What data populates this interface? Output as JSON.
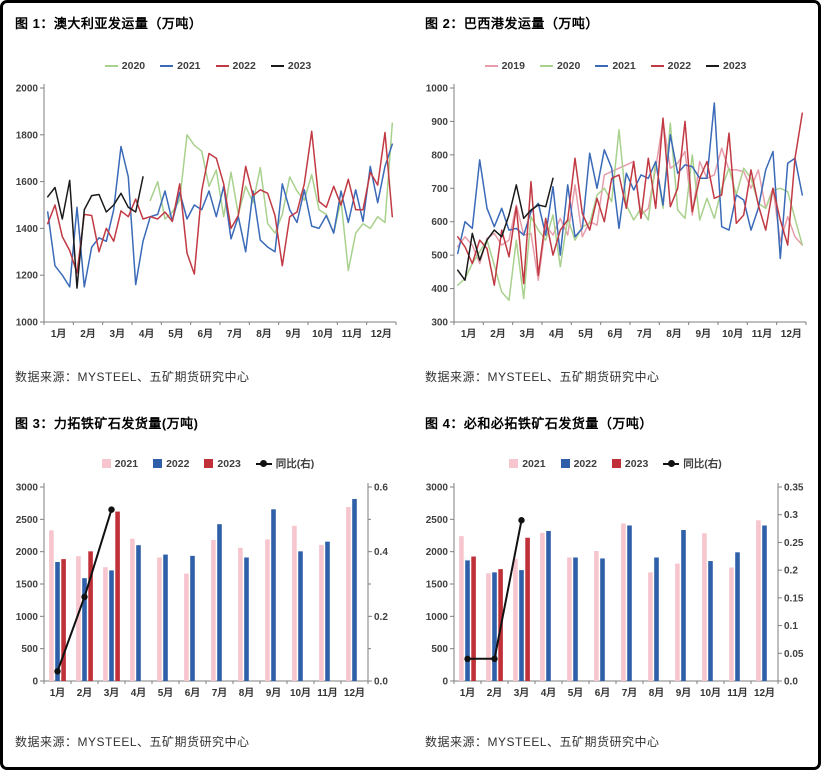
{
  "page": {
    "background": "#ffffff",
    "border_color": "#000000",
    "axis_color": "#7f7f7f",
    "tick_label_color": "#404040"
  },
  "charts": [
    {
      "id": "australia-shipments",
      "title": "图 1：澳大利亚发运量（万吨）",
      "source": "数据来源：MYSTEEL、五矿期货研究中心",
      "type": "line",
      "x_labels": [
        "1月",
        "2月",
        "3月",
        "4月",
        "5月",
        "6月",
        "7月",
        "8月",
        "9月",
        "10月",
        "11月",
        "12月"
      ],
      "y_left": {
        "min": 1000,
        "max": 2000,
        "label_values": [
          1000,
          1200,
          1400,
          1600,
          1800,
          2000
        ],
        "labels": [
          "1000",
          "1200",
          "1400",
          "1600",
          "1800",
          "2000"
        ]
      },
      "series": [
        {
          "name": "2020",
          "color": "#a9d18e",
          "render": "line",
          "axis": "left",
          "values": [
            null,
            null,
            null,
            null,
            null,
            null,
            null,
            null,
            null,
            null,
            null,
            null,
            null,
            null,
            1520,
            1600,
            1440,
            1470,
            1520,
            1800,
            1755,
            1730,
            1580,
            1650,
            1450,
            1640,
            1460,
            1580,
            1510,
            1660,
            1420,
            1380,
            1460,
            1620,
            1560,
            1520,
            1630,
            1480,
            1460,
            1380,
            1520,
            1220,
            1380,
            1420,
            1400,
            1450,
            1425,
            1850
          ]
        },
        {
          "name": "2021",
          "color": "#3a6ab8",
          "render": "line",
          "axis": "left",
          "values": [
            1470,
            1240,
            1200,
            1150,
            1490,
            1150,
            1320,
            1360,
            1345,
            1480,
            1750,
            1620,
            1160,
            1345,
            1450,
            1460,
            1560,
            1430,
            1555,
            1440,
            1500,
            1480,
            1560,
            1450,
            1580,
            1355,
            1450,
            1300,
            1560,
            1350,
            1320,
            1300,
            1590,
            1480,
            1425,
            1565,
            1410,
            1400,
            1455,
            1380,
            1560,
            1425,
            1565,
            1430,
            1665,
            1510,
            1665,
            1760
          ]
        },
        {
          "name": "2022",
          "color": "#c13a43",
          "render": "line",
          "axis": "left",
          "values": [
            1420,
            1500,
            1365,
            1305,
            1210,
            1460,
            1455,
            1300,
            1400,
            1345,
            1475,
            1450,
            1525,
            1440,
            1450,
            1440,
            1470,
            1430,
            1590,
            1295,
            1205,
            1560,
            1720,
            1700,
            1590,
            1400,
            1455,
            1665,
            1540,
            1565,
            1550,
            1455,
            1240,
            1450,
            1470,
            1590,
            1815,
            1515,
            1490,
            1580,
            1500,
            1610,
            1480,
            1480,
            1640,
            1585,
            1810,
            1450
          ]
        },
        {
          "name": "2023",
          "color": "#1a1a1a",
          "render": "line",
          "axis": "left",
          "values": [
            1535,
            1575,
            1440,
            1605,
            1145,
            1480,
            1540,
            1545,
            1470,
            1500,
            1550,
            1490,
            1470,
            1620,
            null,
            null,
            null,
            null,
            null,
            null,
            null,
            null,
            null,
            null,
            null,
            null,
            null,
            null,
            null,
            null,
            null,
            null,
            null,
            null,
            null,
            null,
            null,
            null,
            null,
            null,
            null,
            null,
            null,
            null,
            null,
            null,
            null,
            null
          ]
        }
      ]
    },
    {
      "id": "brazil-shipments",
      "title": "图 2：巴西港发运量（万吨）",
      "source": "数据来源：MYSTEEL、五矿期货研究中心",
      "type": "line",
      "x_labels": [
        "1月",
        "2月",
        "3月",
        "4月",
        "5月",
        "6月",
        "7月",
        "8月",
        "9月",
        "10月",
        "11月",
        "12月"
      ],
      "y_left": {
        "min": 300,
        "max": 1000,
        "label_values": [
          300,
          400,
          500,
          600,
          700,
          800,
          900,
          1000
        ],
        "labels": [
          "300",
          "400",
          "500",
          "600",
          "700",
          "800",
          "900",
          "1000"
        ]
      },
      "series": [
        {
          "name": "2019",
          "color": "#e79daa",
          "render": "line",
          "axis": "left",
          "values": [
            525,
            555,
            530,
            475,
            550,
            565,
            530,
            545,
            650,
            560,
            565,
            425,
            590,
            560,
            610,
            560,
            710,
            555,
            600,
            590,
            740,
            750,
            760,
            770,
            780,
            620,
            640,
            760,
            900,
            760,
            775,
            810,
            620,
            780,
            730,
            740,
            820,
            755,
            755,
            750,
            700,
            755,
            640,
            700,
            540,
            615,
            555,
            530
          ]
        },
        {
          "name": "2020",
          "color": "#a9d18e",
          "render": "line",
          "axis": "left",
          "values": [
            410,
            430,
            475,
            510,
            545,
            470,
            390,
            365,
            545,
            370,
            615,
            575,
            545,
            620,
            465,
            610,
            545,
            585,
            595,
            680,
            700,
            660,
            875,
            650,
            605,
            640,
            605,
            780,
            640,
            895,
            635,
            610,
            800,
            605,
            670,
            610,
            700,
            760,
            680,
            760,
            730,
            655,
            640,
            695,
            700,
            690,
            610,
            530
          ]
        },
        {
          "name": "2021",
          "color": "#3a6ab8",
          "render": "line",
          "axis": "left",
          "values": [
            505,
            600,
            580,
            785,
            640,
            585,
            640,
            575,
            580,
            560,
            630,
            655,
            560,
            705,
            500,
            710,
            555,
            580,
            805,
            700,
            815,
            760,
            580,
            745,
            695,
            740,
            730,
            780,
            650,
            860,
            745,
            770,
            765,
            730,
            730,
            955,
            585,
            575,
            680,
            665,
            575,
            640,
            755,
            810,
            490,
            775,
            790,
            680
          ]
        },
        {
          "name": "2022",
          "color": "#c13a43",
          "render": "line",
          "axis": "left",
          "values": [
            555,
            525,
            475,
            545,
            520,
            410,
            575,
            495,
            645,
            415,
            720,
            440,
            610,
            500,
            575,
            605,
            790,
            625,
            575,
            670,
            600,
            730,
            740,
            640,
            780,
            610,
            790,
            640,
            910,
            645,
            700,
            900,
            630,
            730,
            780,
            670,
            680,
            865,
            595,
            620,
            755,
            650,
            575,
            700,
            605,
            530,
            790,
            925
          ]
        },
        {
          "name": "2023",
          "color": "#1a1a1a",
          "render": "line",
          "axis": "left",
          "values": [
            455,
            425,
            565,
            485,
            545,
            575,
            555,
            620,
            710,
            610,
            635,
            650,
            645,
            730,
            null,
            null,
            null,
            null,
            null,
            null,
            null,
            null,
            null,
            null,
            null,
            null,
            null,
            null,
            null,
            null,
            null,
            null,
            null,
            null,
            null,
            null,
            null,
            null,
            null,
            null,
            null,
            null,
            null,
            null,
            null,
            null,
            null,
            null
          ]
        }
      ]
    },
    {
      "id": "rio-tinto-shipments",
      "title": "图 3：力拓铁矿石发货量(万吨)",
      "source": "数据来源：MYSTEEL、五矿期货研究中心",
      "type": "bar",
      "x_labels": [
        "1月",
        "2月",
        "3月",
        "4月",
        "5月",
        "6月",
        "7月",
        "8月",
        "9月",
        "10月",
        "11月",
        "12月"
      ],
      "y_left": {
        "min": 0,
        "max": 3000,
        "label_values": [
          0,
          500,
          1000,
          1500,
          2000,
          2500,
          3000
        ],
        "labels": [
          "0",
          "500",
          "1000",
          "1500",
          "2000",
          "2500",
          "3000"
        ]
      },
      "y_right": {
        "min": 0,
        "max": 0.6,
        "label_values": [
          0,
          0.2,
          0.4,
          0.6
        ],
        "labels": [
          "0.0",
          "0.2",
          "0.4",
          "0.6"
        ],
        "minor_ticks": [
          0.1,
          0.3,
          0.5
        ]
      },
      "series": [
        {
          "name": "2021",
          "color": "#f6c5ce",
          "render": "bar",
          "axis": "left",
          "values": [
            2330,
            1930,
            1760,
            2200,
            1910,
            1660,
            2180,
            2060,
            2190,
            2400,
            2105,
            2690
          ]
        },
        {
          "name": "2022",
          "color": "#2e5fa8",
          "render": "bar",
          "axis": "left",
          "values": [
            1840,
            1590,
            1710,
            2100,
            1955,
            1935,
            2425,
            1910,
            2655,
            2005,
            2155,
            2815
          ]
        },
        {
          "name": "2023",
          "color": "#bf3038",
          "render": "bar",
          "axis": "left",
          "values": [
            1885,
            2005,
            2620,
            null,
            null,
            null,
            null,
            null,
            null,
            null,
            null,
            null
          ]
        },
        {
          "name": "同比(右)",
          "color": "#111111",
          "render": "line",
          "axis": "right",
          "marker": true,
          "width": 2,
          "values": [
            0.03,
            0.26,
            0.53,
            null,
            null,
            null,
            null,
            null,
            null,
            null,
            null,
            null
          ]
        }
      ]
    },
    {
      "id": "bhp-shipments",
      "title": "图 4：必和必拓铁矿石发货量（万吨）",
      "source": "数据来源：MYSTEEL、五矿期货研究中心",
      "type": "bar",
      "x_labels": [
        "1月",
        "2月",
        "3月",
        "4月",
        "5月",
        "6月",
        "7月",
        "8月",
        "9月",
        "10月",
        "11月",
        "12月"
      ],
      "y_left": {
        "min": 0,
        "max": 3000,
        "label_values": [
          0,
          500,
          1000,
          1500,
          2000,
          2500,
          3000
        ],
        "labels": [
          "0",
          "500",
          "1000",
          "1500",
          "2000",
          "2500",
          "3000"
        ]
      },
      "y_right": {
        "min": 0,
        "max": 0.35,
        "label_values": [
          0,
          0.05,
          0.1,
          0.15,
          0.2,
          0.25,
          0.3,
          0.35
        ],
        "labels": [
          "0.0",
          "0.05",
          "0.1",
          "0.15",
          "0.2",
          "0.25",
          "0.3",
          "0.35"
        ],
        "minor_ticks": []
      },
      "series": [
        {
          "name": "2021",
          "color": "#f6c5ce",
          "render": "bar",
          "axis": "left",
          "values": [
            2240,
            1665,
            1890,
            2290,
            1910,
            2010,
            2435,
            1680,
            1815,
            2285,
            1755,
            2485
          ]
        },
        {
          "name": "2022",
          "color": "#2e5fa8",
          "render": "bar",
          "axis": "left",
          "values": [
            1865,
            1680,
            1715,
            2320,
            1910,
            1895,
            2405,
            1910,
            2335,
            1855,
            1990,
            2405
          ]
        },
        {
          "name": "2023",
          "color": "#bf3038",
          "render": "bar",
          "axis": "left",
          "values": [
            1925,
            1730,
            2215,
            null,
            null,
            null,
            null,
            null,
            null,
            null,
            null,
            null
          ]
        },
        {
          "name": "同比(右)",
          "color": "#111111",
          "render": "line",
          "axis": "right",
          "marker": true,
          "width": 2,
          "values": [
            0.04,
            0.04,
            0.29,
            null,
            null,
            null,
            null,
            null,
            null,
            null,
            null,
            null
          ]
        }
      ]
    }
  ],
  "chart_data": {
    "note": "same data as charts[]; weekly resolution for line charts (4 points per month), monthly for bar charts",
    "charts": [
      {
        "type": "line",
        "title": "图 1：澳大利亚发运量（万吨）",
        "ylim": [
          1000,
          2000
        ],
        "x": "weeks of 1月-12月",
        "legend": [
          "2020",
          "2021",
          "2022",
          "2023"
        ]
      },
      {
        "type": "line",
        "title": "图 2：巴西港发运量（万吨）",
        "ylim": [
          300,
          1000
        ],
        "x": "weeks of 1月-12月",
        "legend": [
          "2019",
          "2020",
          "2021",
          "2022",
          "2023"
        ]
      },
      {
        "type": "bar",
        "title": "图 3：力拓铁矿石发货量(万吨)",
        "ylim_left": [
          0,
          3000
        ],
        "ylim_right": [
          0,
          0.6
        ],
        "categories": [
          "1月",
          "2月",
          "3月",
          "4月",
          "5月",
          "6月",
          "7月",
          "8月",
          "9月",
          "10月",
          "11月",
          "12月"
        ],
        "legend": [
          "2021",
          "2022",
          "2023",
          "同比(右)"
        ]
      },
      {
        "type": "bar",
        "title": "图 4：必和必拓铁矿石发货量（万吨）",
        "ylim_left": [
          0,
          3000
        ],
        "ylim_right": [
          0,
          0.35
        ],
        "categories": [
          "1月",
          "2月",
          "3月",
          "4月",
          "5月",
          "6月",
          "7月",
          "8月",
          "9月",
          "10月",
          "11月",
          "12月"
        ],
        "legend": [
          "2021",
          "2022",
          "2023",
          "同比(右)"
        ]
      }
    ]
  }
}
